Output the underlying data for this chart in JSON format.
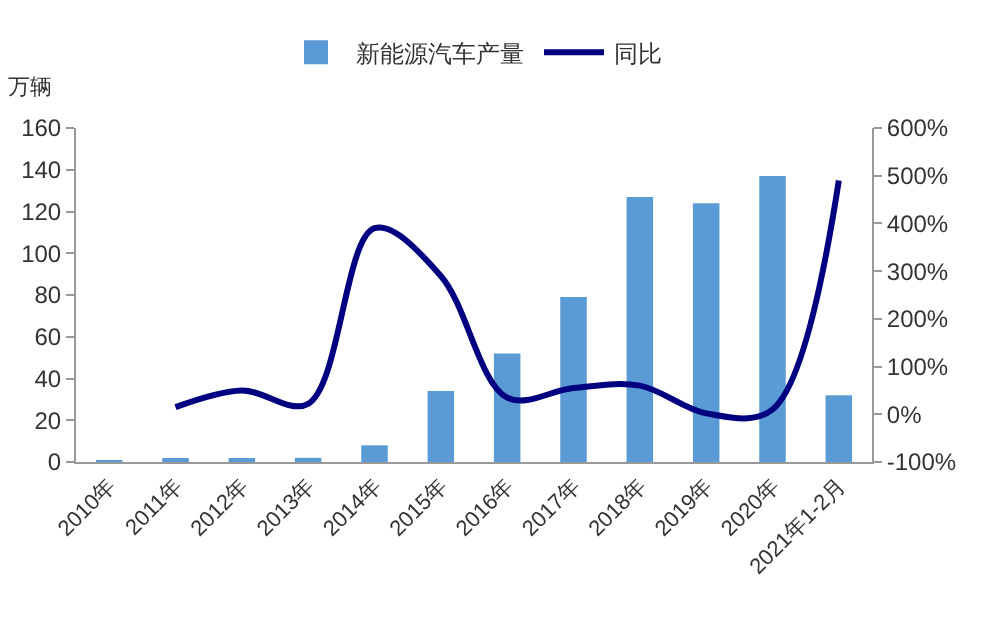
{
  "chart_data": {
    "type": "bar",
    "ylabel": "万辆",
    "categories": [
      "2010年",
      "2011年",
      "2012年",
      "2013年",
      "2014年",
      "2015年",
      "2016年",
      "2017年",
      "2018年",
      "2019年",
      "2020年",
      "2021年1-2月"
    ],
    "series": [
      {
        "name": "新能源汽车产量",
        "color": "#5b9bd5",
        "values": [
          0.5,
          1,
          1,
          2,
          8,
          34,
          52,
          79,
          127,
          124,
          137,
          32
        ]
      },
      {
        "name": "同比",
        "type": "line",
        "axis": "y2",
        "color": "#000080",
        "values": [
          null,
          15,
          50,
          22,
          390,
          290,
          35,
          55,
          60,
          2,
          10,
          490
        ]
      }
    ],
    "ylim": [
      0,
      160
    ],
    "yticks": [
      0,
      20,
      40,
      60,
      80,
      100,
      120,
      140,
      160
    ],
    "y2lim": [
      -100,
      600
    ],
    "y2ticks": [
      {
        "value": -100,
        "label": "-100%"
      },
      {
        "value": 0,
        "label": "0%"
      },
      {
        "value": 100,
        "label": "100%"
      },
      {
        "value": 200,
        "label": "200%"
      },
      {
        "value": 300,
        "label": "300%"
      },
      {
        "value": 400,
        "label": "400%"
      },
      {
        "value": 500,
        "label": "500%"
      },
      {
        "value": 600,
        "label": "600%"
      }
    ],
    "grid": false,
    "legend": "top",
    "line_style": "solid",
    "marker": "none"
  }
}
